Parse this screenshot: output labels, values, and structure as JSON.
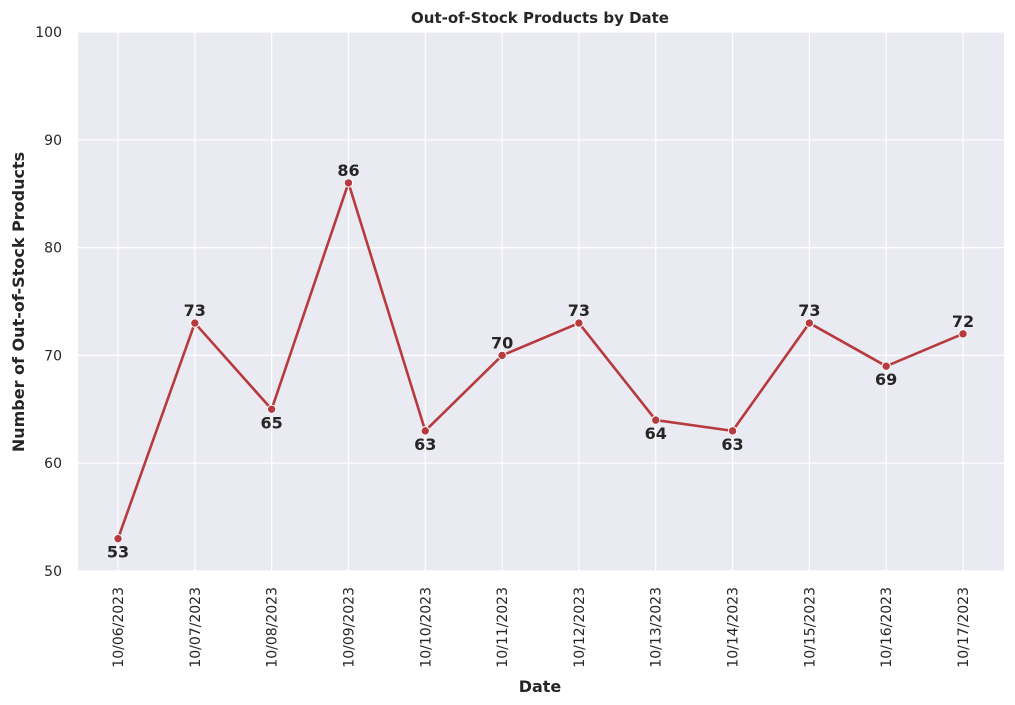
{
  "chart_data": {
    "type": "line",
    "title": "Out-of-Stock Products by Date",
    "xlabel": "Date",
    "ylabel": "Number of Out-of-Stock Products",
    "ylim": [
      50,
      100
    ],
    "yticks": [
      50,
      60,
      70,
      80,
      90,
      100
    ],
    "grid": true,
    "legend": "none",
    "colors": {
      "background": "#eaeaf2",
      "grid": "#ffffff",
      "line": "#b73a3e",
      "marker": "#b73a3e",
      "text": "#262626"
    },
    "x": [
      "10/06/2023",
      "10/07/2023",
      "10/08/2023",
      "10/09/2023",
      "10/10/2023",
      "10/11/2023",
      "10/12/2023",
      "10/13/2023",
      "10/14/2023",
      "10/15/2023",
      "10/16/2023",
      "10/17/2023"
    ],
    "series": [
      {
        "values": [
          53,
          73,
          65,
          86,
          63,
          70,
          73,
          64,
          63,
          73,
          69,
          72
        ],
        "label_position": [
          "below",
          "above",
          "below",
          "above",
          "below",
          "above",
          "above",
          "below",
          "below",
          "above",
          "below",
          "above"
        ]
      }
    ]
  }
}
